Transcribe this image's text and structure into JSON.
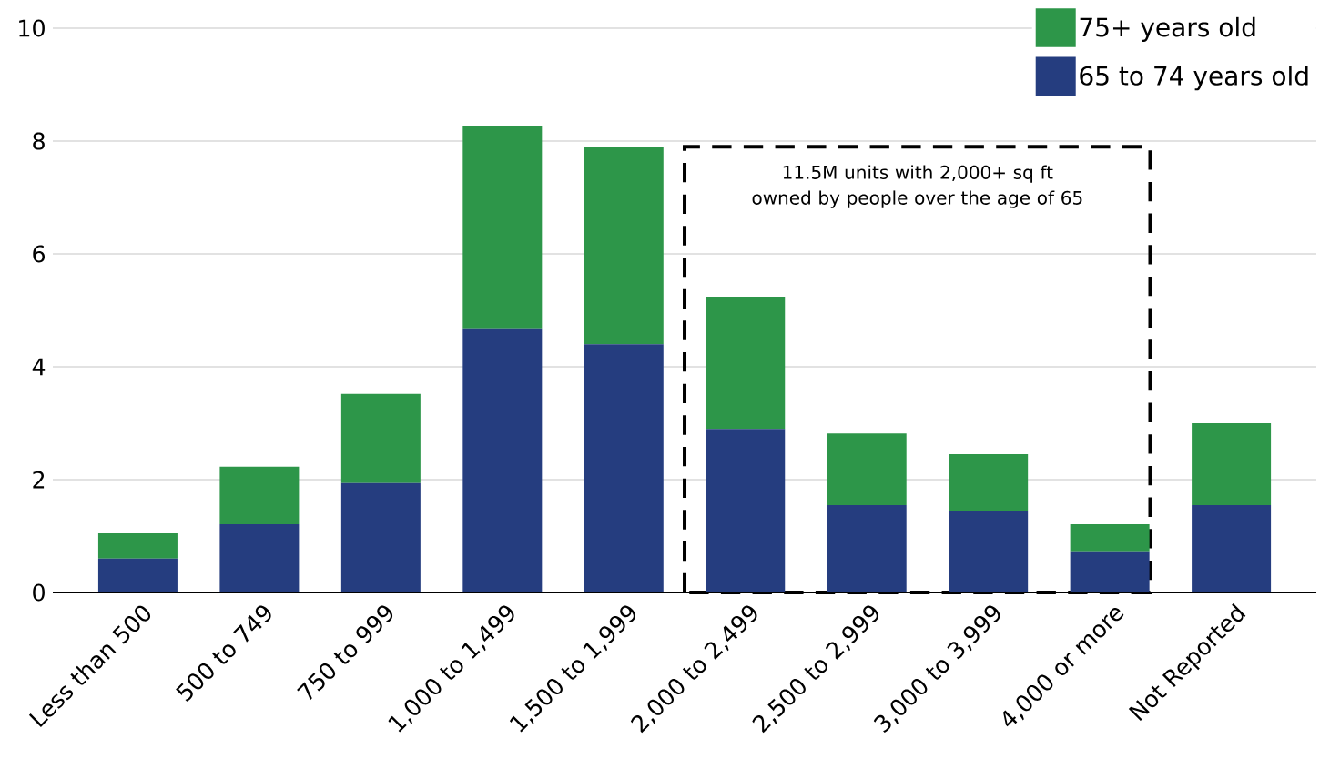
{
  "chart_data": {
    "type": "bar",
    "stacked": true,
    "categories": [
      "Less than 500",
      "500 to 749",
      "750 to 999",
      "1,000 to 1,499",
      "1,500 to 1,999",
      "2,000 to 2,499",
      "2,500 to 2,999",
      "3,000 to 3,999",
      "4,000 or more",
      "Not Reported"
    ],
    "series": [
      {
        "name": "65 to 74 years old",
        "color": "#253d7f",
        "values": [
          0.6,
          1.21,
          1.94,
          4.68,
          4.4,
          2.9,
          1.55,
          1.45,
          0.73,
          1.55
        ]
      },
      {
        "name": "75+ years old",
        "color": "#2d9649",
        "values": [
          0.45,
          1.02,
          1.58,
          3.58,
          3.49,
          2.34,
          1.27,
          1.0,
          0.48,
          1.45
        ]
      }
    ],
    "ylim": [
      0,
      10
    ],
    "yticks": [
      0,
      2,
      4,
      6,
      8,
      10
    ],
    "grid": "y",
    "legend": "top right",
    "annotations": [
      "11.5M units with 2,000+ sq ft owned by people over the age of 65"
    ]
  }
}
